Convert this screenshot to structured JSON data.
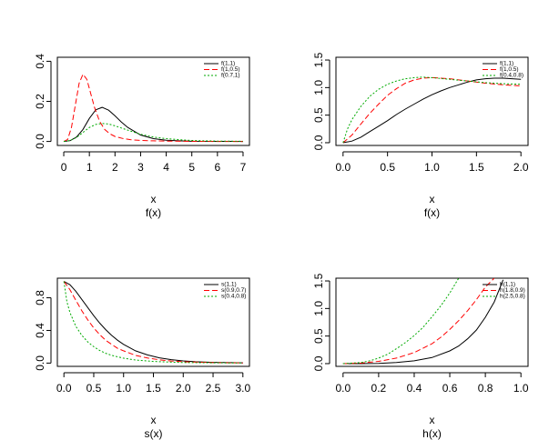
{
  "chart_data": [
    {
      "type": "line",
      "xlabel": "x",
      "ylabel": "",
      "caption": "f(x)",
      "xlim": [
        -0.25,
        7.25
      ],
      "ylim": [
        -0.02,
        0.42
      ],
      "xticks": [
        "0",
        "1",
        "2",
        "3",
        "4",
        "5",
        "6",
        "7"
      ],
      "yticks": [
        "0.0",
        "0.2",
        "0.4"
      ],
      "xtick_values": [
        0,
        1,
        2,
        3,
        4,
        5,
        6,
        7
      ],
      "ytick_values": [
        0,
        0.2,
        0.4
      ],
      "legend_position": "top-right",
      "series": [
        {
          "name": "f(1,1)",
          "color": "#000000",
          "dash": "solid",
          "x": [
            0,
            0.25,
            0.5,
            0.75,
            1,
            1.25,
            1.5,
            1.75,
            2,
            2.25,
            2.5,
            3,
            3.5,
            4,
            4.5,
            5,
            6,
            7
          ],
          "y": [
            0,
            0.004,
            0.022,
            0.06,
            0.115,
            0.158,
            0.17,
            0.156,
            0.128,
            0.097,
            0.07,
            0.032,
            0.014,
            0.006,
            0.003,
            0.001,
            0.0003,
            0
          ]
        },
        {
          "name": "f(1,0.5)",
          "color": "#ff0000",
          "dash": "dashed",
          "x": [
            0,
            0.15,
            0.3,
            0.45,
            0.6,
            0.75,
            0.9,
            1.05,
            1.2,
            1.4,
            1.6,
            1.8,
            2,
            2.3,
            2.6,
            3,
            3.5,
            4,
            5,
            6,
            7
          ],
          "y": [
            0,
            0.01,
            0.07,
            0.18,
            0.29,
            0.335,
            0.31,
            0.24,
            0.17,
            0.1,
            0.06,
            0.038,
            0.025,
            0.015,
            0.009,
            0.005,
            0.003,
            0.002,
            0.001,
            0,
            0
          ]
        },
        {
          "name": "f(0.7,1)",
          "color": "#00aa00",
          "dash": "dotted",
          "x": [
            0,
            0.25,
            0.5,
            0.75,
            1,
            1.25,
            1.5,
            1.75,
            2,
            2.25,
            2.5,
            3,
            3.5,
            4,
            4.5,
            5,
            5.5,
            6,
            7
          ],
          "y": [
            0,
            0.005,
            0.02,
            0.045,
            0.07,
            0.085,
            0.09,
            0.087,
            0.078,
            0.067,
            0.056,
            0.036,
            0.022,
            0.014,
            0.009,
            0.005,
            0.003,
            0.002,
            0.001
          ]
        }
      ]
    },
    {
      "type": "line",
      "xlabel": "x",
      "ylabel": "",
      "caption": "f(x)",
      "xlim": [
        -0.08,
        2.08
      ],
      "ylim": [
        -0.05,
        1.55
      ],
      "xticks": [
        "0.0",
        "0.5",
        "1.0",
        "1.5",
        "2.0"
      ],
      "yticks": [
        "0.0",
        "0.5",
        "1.0",
        "1.5"
      ],
      "xtick_values": [
        0,
        0.5,
        1,
        1.5,
        2
      ],
      "ytick_values": [
        0,
        0.5,
        1,
        1.5
      ],
      "legend_position": "top-right",
      "series": [
        {
          "name": "f(1,1)",
          "color": "#000000",
          "dash": "solid",
          "x": [
            0,
            0.1,
            0.2,
            0.3,
            0.4,
            0.5,
            0.6,
            0.7,
            0.8,
            0.9,
            1,
            1.1,
            1.2,
            1.3,
            1.4,
            1.5,
            1.6,
            1.7,
            1.8,
            1.9,
            2
          ],
          "y": [
            0,
            0.03,
            0.1,
            0.2,
            0.3,
            0.4,
            0.51,
            0.61,
            0.7,
            0.79,
            0.87,
            0.94,
            1.0,
            1.05,
            1.1,
            1.14,
            1.16,
            1.17,
            1.17,
            1.16,
            1.15
          ]
        },
        {
          "name": "f(1,0.5)",
          "color": "#ff0000",
          "dash": "dashed",
          "x": [
            0,
            0.1,
            0.2,
            0.3,
            0.4,
            0.5,
            0.6,
            0.7,
            0.8,
            0.9,
            1,
            1.2,
            1.4,
            1.6,
            1.8,
            2
          ],
          "y": [
            0,
            0.14,
            0.34,
            0.53,
            0.7,
            0.86,
            0.98,
            1.08,
            1.14,
            1.17,
            1.18,
            1.16,
            1.12,
            1.08,
            1.05,
            1.03
          ]
        },
        {
          "name": "f(0.4,0.8)",
          "color": "#00aa00",
          "dash": "dotted",
          "x": [
            0,
            0.05,
            0.1,
            0.2,
            0.3,
            0.4,
            0.5,
            0.6,
            0.7,
            0.8,
            0.9,
            1,
            1.2,
            1.4,
            1.6,
            1.8,
            2
          ],
          "y": [
            0,
            0.25,
            0.42,
            0.66,
            0.84,
            0.97,
            1.06,
            1.12,
            1.16,
            1.18,
            1.19,
            1.18,
            1.15,
            1.12,
            1.09,
            1.07,
            1.06
          ]
        }
      ]
    },
    {
      "type": "line",
      "xlabel": "x",
      "ylabel": "",
      "caption": "s(x)",
      "xlim": [
        -0.11,
        3.11
      ],
      "ylim": [
        -0.04,
        1.04
      ],
      "xticks": [
        "0.0",
        "0.5",
        "1.0",
        "1.5",
        "2.0",
        "2.5",
        "3.0"
      ],
      "yticks": [
        "0.0",
        "0.4",
        "0.8"
      ],
      "xtick_values": [
        0,
        0.5,
        1,
        1.5,
        2,
        2.5,
        3
      ],
      "ytick_values": [
        0,
        0.4,
        0.8
      ],
      "legend_position": "top-right",
      "series": [
        {
          "name": "s(1,1)",
          "color": "#000000",
          "dash": "solid",
          "x": [
            0,
            0.1,
            0.2,
            0.3,
            0.4,
            0.5,
            0.6,
            0.7,
            0.8,
            0.9,
            1,
            1.2,
            1.4,
            1.6,
            1.8,
            2,
            2.2,
            2.5,
            3
          ],
          "y": [
            1,
            0.96,
            0.88,
            0.78,
            0.68,
            0.58,
            0.49,
            0.41,
            0.34,
            0.28,
            0.23,
            0.15,
            0.1,
            0.065,
            0.042,
            0.027,
            0.017,
            0.009,
            0.003
          ]
        },
        {
          "name": "s(0.9,0.7)",
          "color": "#ff0000",
          "dash": "dashed",
          "x": [
            0,
            0.1,
            0.2,
            0.3,
            0.4,
            0.5,
            0.6,
            0.7,
            0.8,
            0.9,
            1,
            1.2,
            1.4,
            1.6,
            1.8,
            2,
            2.5,
            3
          ],
          "y": [
            1,
            0.9,
            0.77,
            0.64,
            0.53,
            0.43,
            0.35,
            0.28,
            0.23,
            0.18,
            0.15,
            0.095,
            0.062,
            0.04,
            0.026,
            0.017,
            0.006,
            0.002
          ]
        },
        {
          "name": "s(0.4,0.8)",
          "color": "#00aa00",
          "dash": "dotted",
          "x": [
            0,
            0.05,
            0.1,
            0.2,
            0.3,
            0.4,
            0.5,
            0.6,
            0.7,
            0.8,
            1,
            1.2,
            1.5,
            2,
            2.5,
            3
          ],
          "y": [
            1,
            0.75,
            0.62,
            0.45,
            0.34,
            0.26,
            0.2,
            0.155,
            0.12,
            0.095,
            0.06,
            0.038,
            0.02,
            0.007,
            0.003,
            0.001
          ]
        }
      ]
    },
    {
      "type": "line",
      "xlabel": "x",
      "ylabel": "",
      "caption": "h(x)",
      "xlim": [
        -0.04,
        1.04
      ],
      "ylim": [
        -0.05,
        1.55
      ],
      "xticks": [
        "0.0",
        "0.2",
        "0.4",
        "0.6",
        "0.8",
        "1.0"
      ],
      "yticks": [
        "0.0",
        "0.5",
        "1.0",
        "1.5"
      ],
      "xtick_values": [
        0,
        0.2,
        0.4,
        0.6,
        0.8,
        1
      ],
      "ytick_values": [
        0,
        0.5,
        1,
        1.5
      ],
      "legend_position": "top-right",
      "series": [
        {
          "name": "h(1,1)",
          "color": "#000000",
          "dash": "solid",
          "x": [
            0,
            0.1,
            0.2,
            0.3,
            0.4,
            0.5,
            0.6,
            0.65,
            0.7,
            0.75,
            0.8,
            0.85,
            0.9
          ],
          "y": [
            0,
            0,
            0.005,
            0.02,
            0.05,
            0.11,
            0.23,
            0.32,
            0.45,
            0.61,
            0.84,
            1.12,
            1.52
          ]
        },
        {
          "name": "h(1.8,0.9)",
          "color": "#ff0000",
          "dash": "dashed",
          "x": [
            0,
            0.1,
            0.2,
            0.3,
            0.4,
            0.5,
            0.55,
            0.6,
            0.65,
            0.7,
            0.75,
            0.8,
            0.85
          ],
          "y": [
            0,
            0.01,
            0.04,
            0.1,
            0.2,
            0.36,
            0.48,
            0.62,
            0.78,
            0.96,
            1.16,
            1.39,
            1.55
          ]
        },
        {
          "name": "h(2.5,0.8)",
          "color": "#00aa00",
          "dash": "dotted",
          "x": [
            0,
            0.1,
            0.15,
            0.2,
            0.25,
            0.3,
            0.35,
            0.4,
            0.45,
            0.5,
            0.55,
            0.6,
            0.65
          ],
          "y": [
            0,
            0.02,
            0.05,
            0.1,
            0.17,
            0.27,
            0.38,
            0.51,
            0.66,
            0.85,
            1.05,
            1.28,
            1.55
          ]
        }
      ]
    }
  ]
}
